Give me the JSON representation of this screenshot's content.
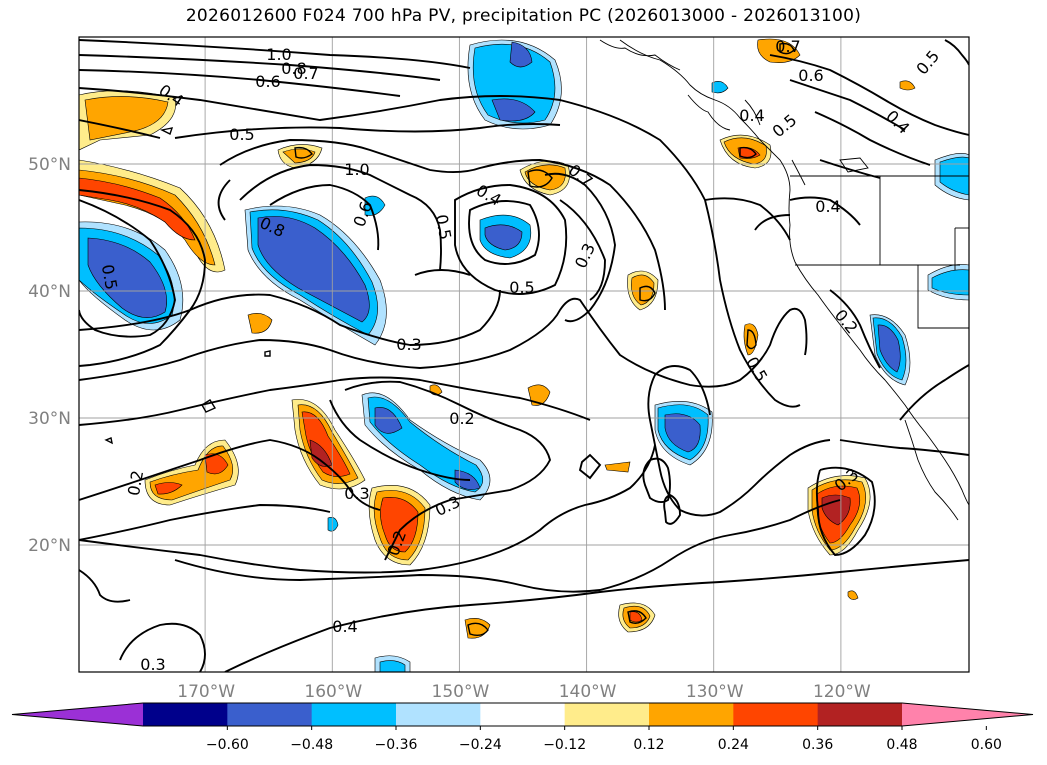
{
  "title": "2026012600 F024 700 hPa PV, precipitation PC (2026013000 - 2026013100)",
  "map": {
    "lon_range": [
      -180,
      -110
    ],
    "lat_range": [
      10,
      60
    ],
    "lat_ticks": [
      {
        "value": 20,
        "label": "20°N"
      },
      {
        "value": 30,
        "label": "30°N"
      },
      {
        "value": 40,
        "label": "40°N"
      },
      {
        "value": 50,
        "label": "50°N"
      }
    ],
    "lon_ticks": [
      {
        "value": -170,
        "label": "170°W"
      },
      {
        "value": -160,
        "label": "160°W"
      },
      {
        "value": -150,
        "label": "150°W"
      },
      {
        "value": -140,
        "label": "140°W"
      },
      {
        "value": -130,
        "label": "130°W"
      },
      {
        "value": -120,
        "label": "120°W"
      }
    ],
    "grid": true,
    "contour_labels": [
      "1.0",
      "0.8",
      "0.6",
      "0.7",
      "0.4",
      "0.5",
      "1.0",
      "0.6",
      "0.8",
      "0.5",
      "0.4",
      "0.7",
      "0.3",
      "0.5",
      "0.5",
      "0.3",
      "0.2",
      "0.3",
      "0.3",
      "0.2",
      "0.2",
      "0.4",
      "0.3",
      "0.5",
      "0.2",
      "0.3",
      "0.6",
      "0.7",
      "0.5",
      "0.4",
      "0.4",
      "0.5",
      "0.4"
    ]
  },
  "colorbar": {
    "colors": [
      "#9b30d6",
      "#00008b",
      "#3a5fcd",
      "#00bfff",
      "#b0e2ff",
      "#ffffff",
      "#ffec8b",
      "#ffa500",
      "#ff4500",
      "#b22222",
      "#ff82ab"
    ],
    "ticks": [
      "−0.60",
      "−0.48",
      "−0.36",
      "−0.24",
      "−0.12",
      "0.12",
      "0.24",
      "0.36",
      "0.48",
      "0.60"
    ]
  }
}
